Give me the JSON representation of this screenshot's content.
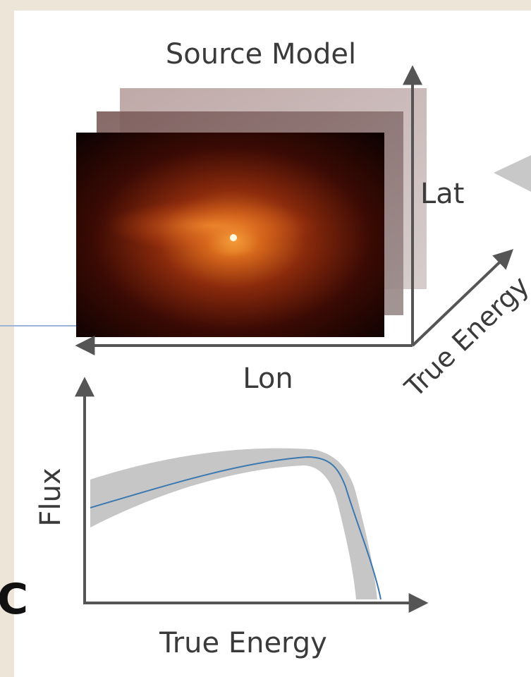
{
  "diagram": {
    "title": "Source Model",
    "cube_axes": {
      "lat": "Lat",
      "lon": "Lon",
      "energy": "True Energy"
    },
    "spectrum_axes": {
      "y": "Flux",
      "x": "True Energy"
    },
    "edge_text": "C"
  }
}
